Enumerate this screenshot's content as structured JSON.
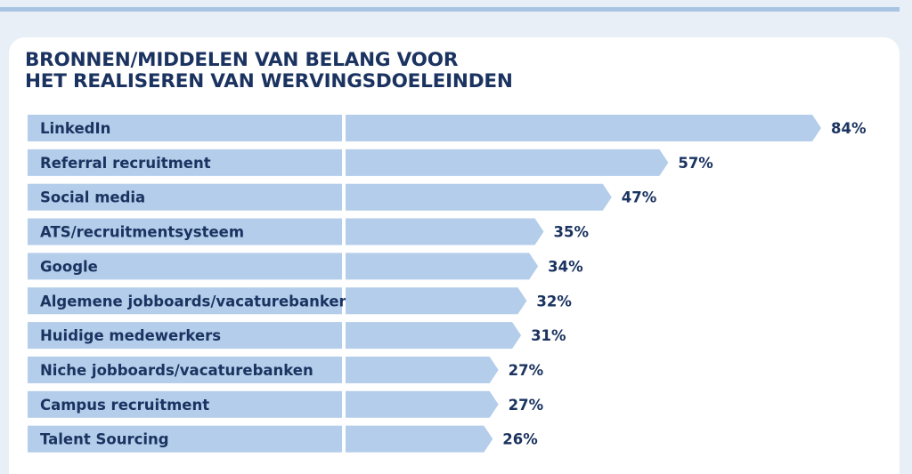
{
  "chart_data": {
    "type": "bar",
    "orientation": "horizontal",
    "title_lines": [
      "BRONNEN/MIDDELEN VAN BELANG VOOR",
      "HET REALISEREN VAN WERVINGSDOELEINDEN"
    ],
    "categories": [
      "LinkedIn",
      "Referral recruitment",
      "Social media",
      "ATS/recruitmentsysteem",
      "Google",
      "Algemene jobboards/vacaturebanken",
      "Huidige medewerkers",
      "Niche jobboards/vacaturebanken",
      "Campus recruitment",
      "Talent Sourcing"
    ],
    "values": [
      84,
      57,
      47,
      35,
      34,
      32,
      31,
      27,
      27,
      26
    ],
    "value_labels": [
      "84%",
      "57%",
      "47%",
      "35%",
      "34%",
      "32%",
      "31%",
      "27%",
      "27%",
      "26%"
    ],
    "unit": "%",
    "xlim": [
      0,
      84
    ],
    "grid": false,
    "legend": "none",
    "colors": {
      "bar": "#b3cdea",
      "label_box": "#b3cdea",
      "text": "#1b3360",
      "card": "#ffffff",
      "background": "#e9eff7",
      "top_rule": "#a9c3e2"
    }
  }
}
